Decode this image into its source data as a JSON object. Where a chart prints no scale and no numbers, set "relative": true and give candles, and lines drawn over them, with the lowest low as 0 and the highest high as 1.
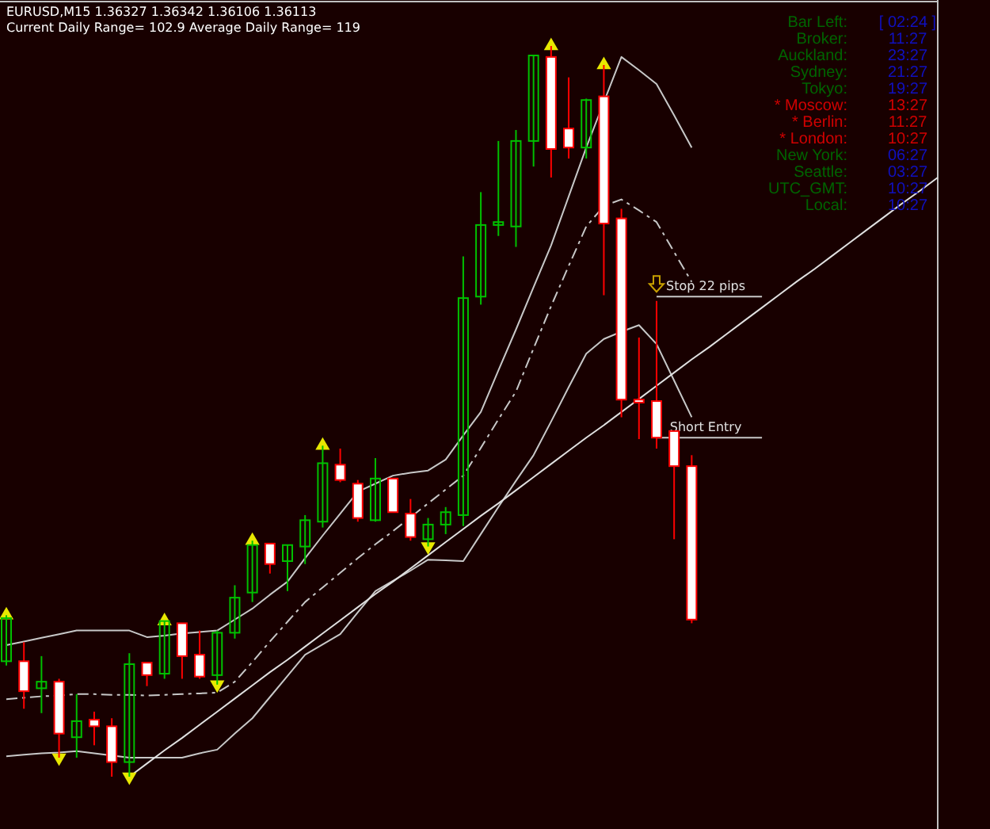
{
  "chart_data": {
    "type": "candlestick",
    "relative": true,
    "title": "EURUSD,M15  1.36327 1.36342 1.36106 1.36113",
    "subtitle": "Current Daily Range= 102.9   Average Daily Range= 119",
    "categories": [
      null,
      null,
      null,
      null,
      null,
      null,
      null,
      null,
      null,
      null,
      null,
      null,
      null,
      null,
      null,
      null,
      null,
      null,
      null,
      null,
      null,
      null,
      null,
      null,
      null,
      null,
      null,
      null,
      null,
      null,
      null,
      null,
      null,
      null,
      null,
      null,
      null,
      null,
      null,
      null,
      null,
      null,
      null,
      null,
      null,
      null,
      null,
      null,
      null,
      null,
      null,
      null,
      null,
      null
    ],
    "ohlc": [
      [
        0.158,
        0.221,
        0.152,
        0.217
      ],
      [
        0.158,
        0.184,
        0.093,
        0.117
      ],
      [
        0.121,
        0.165,
        0.087,
        0.13
      ],
      [
        0.13,
        0.134,
        0.026,
        0.059
      ],
      [
        0.054,
        0.113,
        0.026,
        0.076
      ],
      [
        0.078,
        0.089,
        0.043,
        0.069
      ],
      [
        0.069,
        0.08,
        0,
        0.02
      ],
      [
        0.02,
        0.169,
        0,
        0.154
      ],
      [
        0.156,
        0.156,
        0.124,
        0.139
      ],
      [
        0.141,
        0.213,
        0.134,
        0.213
      ],
      [
        0.21,
        0.21,
        0.134,
        0.165
      ],
      [
        0.167,
        0.2,
        0.134,
        0.137
      ],
      [
        0.139,
        0.2,
        0.126,
        0.197
      ],
      [
        0.197,
        0.262,
        0.189,
        0.245
      ],
      [
        0.252,
        0.323,
        0.239,
        0.317
      ],
      [
        0.319,
        0.319,
        0.278,
        0.291
      ],
      [
        0.295,
        0.317,
        0.254,
        0.317
      ],
      [
        0.315,
        0.358,
        0.291,
        0.351
      ],
      [
        0.349,
        0.453,
        0.341,
        0.429
      ],
      [
        0.427,
        0.449,
        0.403,
        0.406
      ],
      [
        0.401,
        0.406,
        0.349,
        0.354
      ],
      [
        0.351,
        0.436,
        0.349,
        0.408
      ],
      [
        0.408,
        0.408,
        0.362,
        0.362
      ],
      [
        0.36,
        0.38,
        0.323,
        0.328
      ],
      [
        0.325,
        0.354,
        0.315,
        0.345
      ],
      [
        0.345,
        0.369,
        0.332,
        0.362
      ],
      [
        0.358,
        0.712,
        0.343,
        0.655
      ],
      [
        0.657,
        0.8,
        0.646,
        0.755
      ],
      [
        0.755,
        0.87,
        0.74,
        0.759
      ],
      [
        0.753,
        0.885,
        0.725,
        0.87
      ],
      [
        0.87,
        0.987,
        0.835,
        0.987
      ],
      [
        0.985,
        1,
        0.82,
        0.859
      ],
      [
        0.887,
        0.957,
        0.846,
        0.861
      ],
      [
        0.861,
        0.928,
        0.846,
        0.926
      ],
      [
        0.931,
        0.974,
        0.659,
        0.757
      ],
      [
        0.764,
        0.777,
        0.492,
        0.516
      ],
      [
        0.516,
        0.601,
        0.462,
        0.512
      ],
      [
        0.514,
        0.651,
        0.449,
        0.464
      ],
      [
        0.473,
        0.473,
        0.325,
        0.425
      ],
      [
        0.425,
        0.44,
        0.21,
        0.215
      ],
      null,
      null,
      null,
      null,
      null,
      null,
      null,
      null,
      null,
      null,
      null,
      null,
      null,
      null
    ],
    "colors": [
      "#00c000",
      "#ff0000",
      "#00c000",
      "#ff0000",
      "#00c000",
      "#ff0000",
      "#ff0000",
      "#00c000",
      "#ff0000",
      "#00c000",
      "#ff0000",
      "#ff0000",
      "#00c000",
      "#00c000",
      "#00c000",
      "#ff0000",
      "#00c000",
      "#00c000",
      "#00c000",
      "#ff0000",
      "#ff0000",
      "#00c000",
      "#ff0000",
      "#ff0000",
      "#00c000",
      "#00c000",
      "#00c000",
      "#00c000",
      "#00c000",
      "#00c000",
      "#00c000",
      "#ff0000",
      "#ff0000",
      "#00c000",
      "#ff0000",
      "#ff0000",
      "#ff0000",
      "#ff0000",
      "#ff0000",
      "#ff0000",
      null,
      null,
      null,
      null,
      null,
      null,
      null,
      null,
      null,
      null,
      null,
      null,
      null,
      null
    ],
    "series": [
      {
        "type": "line",
        "color": "#c8c8c8",
        "line_style": "solid",
        "values": [
          0.18,
          0.185,
          0.19,
          0.195,
          0.2,
          0.2,
          0.2,
          0.2,
          0.191,
          0.193,
          0.196,
          0.198,
          0.2,
          0.215,
          0.23,
          0.249,
          0.267,
          0.299,
          0.33,
          0.36,
          0.39,
          0.401,
          0.412,
          0.416,
          0.419,
          0.434,
          0.467,
          0.499,
          0.556,
          0.612,
          0.67,
          0.727,
          0.794,
          0.861,
          0.923,
          0.985,
          0.967,
          0.948,
          0.905,
          0.861,
          null,
          null,
          null,
          null,
          null,
          null,
          null,
          null,
          null,
          null,
          null,
          null,
          null,
          null
        ]
      },
      {
        "type": "line",
        "color": "#c8c8c8",
        "line_style": "dashed",
        "values": [
          0.106,
          0.108,
          0.11,
          0.111,
          0.113,
          0.113,
          0.112,
          0.112,
          0.111,
          0.112,
          0.113,
          0.114,
          0.115,
          0.13,
          0.157,
          0.185,
          0.212,
          0.239,
          0.259,
          0.279,
          0.299,
          0.318,
          0.336,
          0.355,
          0.374,
          0.393,
          0.412,
          0.45,
          0.489,
          0.527,
          0.586,
          0.644,
          0.699,
          0.753,
          0.781,
          0.79,
          0.775,
          0.759,
          0.718,
          0.677,
          null,
          null,
          null,
          null,
          null,
          null,
          null,
          null,
          null,
          null,
          null,
          null,
          null,
          null
        ]
      },
      {
        "type": "line",
        "color": "#c8c8c8",
        "line_style": "solid",
        "values": [
          0.028,
          0.03,
          0.032,
          0.033,
          0.035,
          0.032,
          0.029,
          0.026,
          0.026,
          0.026,
          0.026,
          0.032,
          0.037,
          0.059,
          0.08,
          0.109,
          0.138,
          0.167,
          0.181,
          0.195,
          0.225,
          0.254,
          0.268,
          0.282,
          0.297,
          0.296,
          0.295,
          0.332,
          0.369,
          0.405,
          0.44,
          0.486,
          0.533,
          0.579,
          0.599,
          0.609,
          0.618,
          0.592,
          0.542,
          0.492,
          null,
          null,
          null,
          null,
          null,
          null,
          null,
          null,
          null,
          null,
          null,
          null,
          null,
          null
        ]
      },
      {
        "type": "line",
        "color": "#e0e0e0",
        "line_style": "solid",
        "values": [
          null,
          null,
          null,
          null,
          null,
          null,
          null,
          0,
          0.018,
          0.036,
          0.053,
          0.071,
          0.089,
          0.107,
          0.125,
          0.143,
          0.16,
          0.178,
          0.196,
          0.214,
          0.232,
          0.25,
          0.267,
          0.285,
          0.303,
          0.321,
          0.339,
          0.357,
          0.374,
          0.392,
          0.41,
          0.428,
          0.446,
          0.464,
          0.481,
          0.499,
          0.517,
          0.535,
          0.553,
          0.571,
          0.588,
          0.606,
          0.624,
          0.642,
          0.66,
          0.678,
          0.695,
          0.713,
          0.731,
          0.749,
          0.767,
          0.785,
          0.802,
          0.82
        ]
      },
      {
        "type": "scatter",
        "color": "#e8e800",
        "marker": "triangle",
        "values": [
          0.221,
          null,
          null,
          null,
          null,
          null,
          null,
          null,
          null,
          0.213,
          null,
          null,
          null,
          null,
          0.323,
          null,
          null,
          null,
          0.453,
          null,
          null,
          null,
          null,
          null,
          null,
          null,
          null,
          null,
          null,
          null,
          null,
          1,
          null,
          null,
          0.974,
          null,
          null,
          null,
          null,
          null,
          null,
          null,
          null,
          null,
          null,
          null,
          null,
          null,
          null,
          null,
          null,
          null,
          null,
          null
        ]
      },
      {
        "type": "scatter",
        "color": "#e8e800",
        "marker": "triangle",
        "values": [
          null,
          null,
          null,
          0.026,
          null,
          null,
          null,
          0,
          null,
          null,
          null,
          null,
          0.126,
          null,
          null,
          null,
          null,
          null,
          null,
          null,
          null,
          null,
          null,
          null,
          0.315,
          null,
          null,
          null,
          null,
          null,
          null,
          null,
          null,
          null,
          null,
          null,
          null,
          null,
          null,
          null,
          null,
          null,
          null,
          null,
          null,
          null,
          null,
          null,
          null,
          null,
          null,
          null,
          null,
          null
        ]
      }
    ],
    "ref_lines": [
      {
        "axis": "y",
        "value": 0.657,
        "label": "Stop 22 pips",
        "color": "#c8c8c8"
      },
      {
        "axis": "y",
        "value": 0.464,
        "label": "Short Entry",
        "color": "#c8c8c8"
      }
    ],
    "annotations": [
      "Bar Left:",
      "[ 02:24 ]",
      "Broker:",
      "11:27",
      "Auckland:",
      "23:27",
      "Sydney:",
      "21:27",
      "Tokyo:",
      "19:27",
      "* Moscow:",
      "13:27",
      "* Berlin:",
      "11:27",
      "* London:",
      "10:27",
      "New York:",
      "06:27",
      "Seattle:",
      "03:27",
      "UTC_GMT:",
      "10:27",
      "Local:",
      "10:27"
    ]
  }
}
